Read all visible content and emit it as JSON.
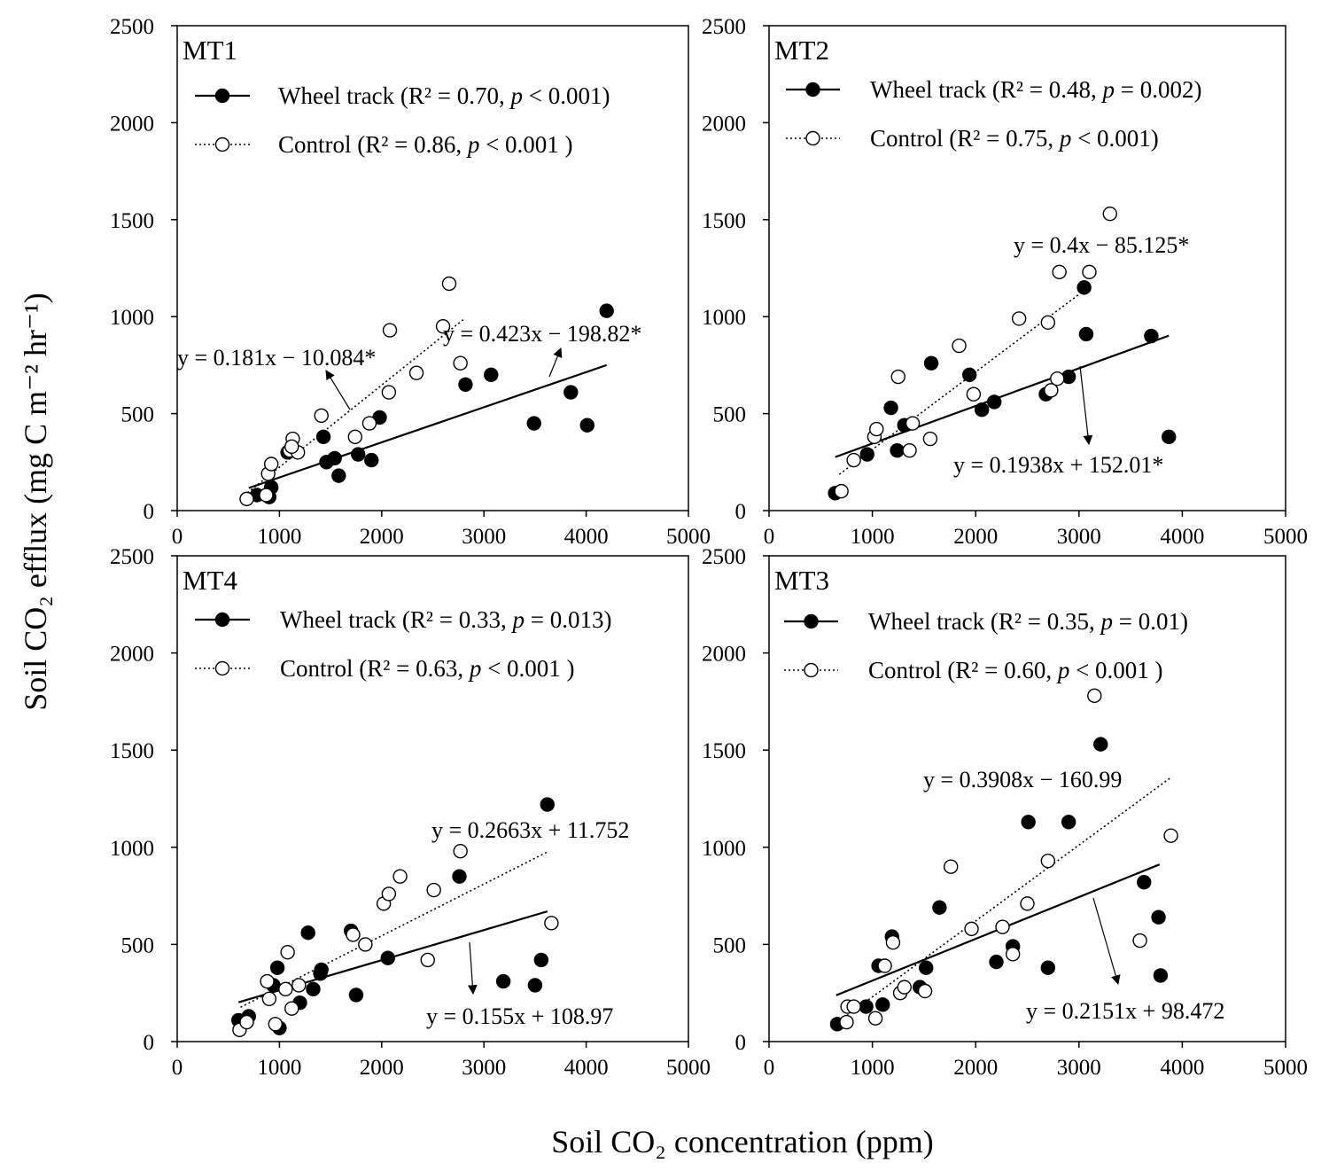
{
  "figure": {
    "ylabel": "Soil CO₂ efflux (mg C m⁻² hr⁻¹)",
    "xlabel": "Soil CO₂ concentration (ppm)"
  },
  "chart_data": [
    {
      "type": "scatter",
      "panel": "MT1",
      "xlim": [
        0,
        5000
      ],
      "ylim": [
        0,
        2500
      ],
      "xticks": [
        "0",
        "1000",
        "2000",
        "3000",
        "4000",
        "5000"
      ],
      "yticks": [
        "0",
        "500",
        "1000",
        "1500",
        "2000",
        "2500"
      ],
      "legend_position": "top-left",
      "series": [
        {
          "name": "Wheel track",
          "marker": "filled",
          "line": "solid",
          "legend_text": "Wheel track (R² = 0.70, p < 0.001)",
          "stats": {
            "r2": "0.70",
            "p": "< 0.001"
          },
          "equation": "y = 0.181x − 10.084*",
          "fit": {
            "slope": 0.181,
            "intercept": -10.084,
            "x_range": [
              700,
              4200
            ]
          },
          "x": [
            780,
            900,
            920,
            1080,
            1430,
            1460,
            1540,
            1580,
            1770,
            1900,
            1980,
            2820,
            3070,
            3490,
            3850,
            4010,
            4200
          ],
          "y": [
            80,
            70,
            120,
            300,
            380,
            250,
            270,
            180,
            290,
            260,
            480,
            650,
            700,
            450,
            610,
            440,
            1030
          ]
        },
        {
          "name": "Control",
          "marker": "open",
          "line": "dotted",
          "legend_text": "Control (R² = 0.86, p < 0.001 )",
          "stats": {
            "r2": "0.86",
            "p": "< 0.001"
          },
          "equation": "y = 0.423x − 198.82*",
          "fit": {
            "slope": 0.423,
            "intercept": -198.82,
            "x_range": [
              620,
              2800
            ]
          },
          "x": [
            680,
            870,
            890,
            920,
            1100,
            1130,
            1180,
            1410,
            1740,
            1880,
            2070,
            2080,
            2340,
            2600,
            2660,
            2770,
            1120
          ],
          "y": [
            60,
            80,
            190,
            240,
            310,
            370,
            300,
            490,
            380,
            450,
            610,
            930,
            710,
            950,
            1170,
            760,
            330
          ]
        }
      ]
    },
    {
      "type": "scatter",
      "panel": "MT2",
      "xlim": [
        0,
        5000
      ],
      "ylim": [
        0,
        2500
      ],
      "xticks": [
        "0",
        "1000",
        "2000",
        "3000",
        "4000",
        "5000"
      ],
      "yticks": [
        "0",
        "500",
        "1000",
        "1500",
        "2000",
        "2500"
      ],
      "legend_position": "top-left",
      "series": [
        {
          "name": "Wheel track",
          "marker": "filled",
          "line": "solid",
          "legend_text": "Wheel track (R² = 0.48, p = 0.002)",
          "stats": {
            "r2": "0.48",
            "p": "= 0.002"
          },
          "equation": "y = 0.1938x + 152.01*",
          "fit": {
            "slope": 0.1938,
            "intercept": 152.01,
            "x_range": [
              640,
              3870
            ]
          },
          "x": [
            640,
            950,
            1180,
            1240,
            1310,
            1570,
            1940,
            2060,
            2180,
            2680,
            2900,
            3050,
            3070,
            3700,
            3870
          ],
          "y": [
            90,
            290,
            530,
            310,
            440,
            760,
            700,
            520,
            560,
            600,
            690,
            1150,
            910,
            900,
            380
          ]
        },
        {
          "name": "Control",
          "marker": "open",
          "line": "dotted",
          "legend_text": "Control (R² = 0.75, p < 0.001)",
          "stats": {
            "r2": "0.75",
            "p": "< 0.001"
          },
          "equation": "y = 0.4x − 85.125*",
          "fit": {
            "slope": 0.4,
            "intercept": -85.125,
            "x_range": [
              680,
              3100
            ]
          },
          "x": [
            700,
            820,
            1020,
            1040,
            1250,
            1360,
            1390,
            1560,
            1840,
            1980,
            2420,
            2700,
            2730,
            2790,
            2810,
            3100,
            3300
          ],
          "y": [
            100,
            260,
            380,
            420,
            690,
            310,
            450,
            370,
            850,
            600,
            990,
            970,
            620,
            680,
            1230,
            1230,
            1530
          ]
        }
      ]
    },
    {
      "type": "scatter",
      "panel": "MT4",
      "xlim": [
        0,
        5000
      ],
      "ylim": [
        0,
        2500
      ],
      "xticks": [
        "0",
        "1000",
        "2000",
        "3000",
        "4000",
        "5000"
      ],
      "yticks": [
        "0",
        "500",
        "1000",
        "1500",
        "2000",
        "2500"
      ],
      "legend_position": "top-left",
      "series": [
        {
          "name": "Wheel track",
          "marker": "filled",
          "line": "solid",
          "legend_text": "Wheel track (R² = 0.33, p = 0.013)",
          "stats": {
            "r2": "0.33",
            "p": "= 0.013"
          },
          "equation": "y = 0.155x + 108.97",
          "fit": {
            "slope": 0.155,
            "intercept": 108.97,
            "x_range": [
              600,
              3620
            ]
          },
          "x": [
            600,
            700,
            940,
            980,
            1000,
            1200,
            1280,
            1330,
            1400,
            1410,
            1700,
            1750,
            2060,
            2760,
            3190,
            3500,
            3560,
            3620
          ],
          "y": [
            110,
            130,
            290,
            380,
            70,
            200,
            560,
            270,
            350,
            370,
            570,
            240,
            430,
            850,
            310,
            290,
            420,
            1220
          ]
        },
        {
          "name": "Control",
          "marker": "open",
          "line": "dotted",
          "legend_text": "Control (R² = 0.63, p < 0.001 )",
          "stats": {
            "r2": "0.63",
            "p": "< 0.001"
          },
          "equation": "y = 0.2663x + 11.752",
          "fit": {
            "slope": 0.2663,
            "intercept": 11.752,
            "x_range": [
              620,
              3620
            ]
          },
          "x": [
            610,
            680,
            880,
            900,
            960,
            1060,
            1080,
            1120,
            1190,
            1720,
            1840,
            2020,
            2070,
            2180,
            2450,
            2510,
            2770,
            3660
          ],
          "y": [
            60,
            100,
            310,
            220,
            90,
            270,
            460,
            170,
            290,
            550,
            500,
            710,
            760,
            850,
            420,
            780,
            980,
            610
          ]
        }
      ]
    },
    {
      "type": "scatter",
      "panel": "MT3",
      "xlim": [
        0,
        5000
      ],
      "ylim": [
        0,
        2500
      ],
      "xticks": [
        "0",
        "1000",
        "2000",
        "3000",
        "4000",
        "5000"
      ],
      "yticks": [
        "0",
        "500",
        "1000",
        "1500",
        "2000",
        "2500"
      ],
      "legend_position": "top-left",
      "series": [
        {
          "name": "Wheel track",
          "marker": "filled",
          "line": "solid",
          "legend_text": "Wheel track (R² = 0.35, p = 0.01)",
          "stats": {
            "r2": "0.35",
            "p": "= 0.01"
          },
          "equation": "y = 0.2151x + 98.472",
          "fit": {
            "slope": 0.2151,
            "intercept": 98.472,
            "x_range": [
              650,
              3780
            ]
          },
          "x": [
            660,
            940,
            1060,
            1100,
            1190,
            1460,
            1520,
            1650,
            2200,
            2360,
            2510,
            2700,
            2900,
            3210,
            3630,
            3770,
            3790
          ],
          "y": [
            90,
            180,
            390,
            190,
            540,
            280,
            380,
            690,
            410,
            490,
            1130,
            380,
            1130,
            1530,
            820,
            640,
            340
          ]
        },
        {
          "name": "Control",
          "marker": "open",
          "line": "dotted",
          "legend_text": "Control (R² = 0.60, p < 0.001 )",
          "stats": {
            "r2": "0.60",
            "p": "< 0.001"
          },
          "equation": "y = 0.3908x − 160.99",
          "fit": {
            "slope": 0.3908,
            "intercept": -160.99,
            "x_range": [
              650,
              3880
            ]
          },
          "x": [
            750,
            760,
            820,
            1030,
            1120,
            1200,
            1270,
            1310,
            1510,
            1760,
            1960,
            2260,
            2360,
            2500,
            2700,
            3150,
            3590,
            3890
          ],
          "y": [
            100,
            180,
            180,
            120,
            390,
            510,
            250,
            280,
            260,
            900,
            580,
            590,
            450,
            710,
            930,
            1780,
            520,
            1060
          ]
        }
      ]
    }
  ]
}
